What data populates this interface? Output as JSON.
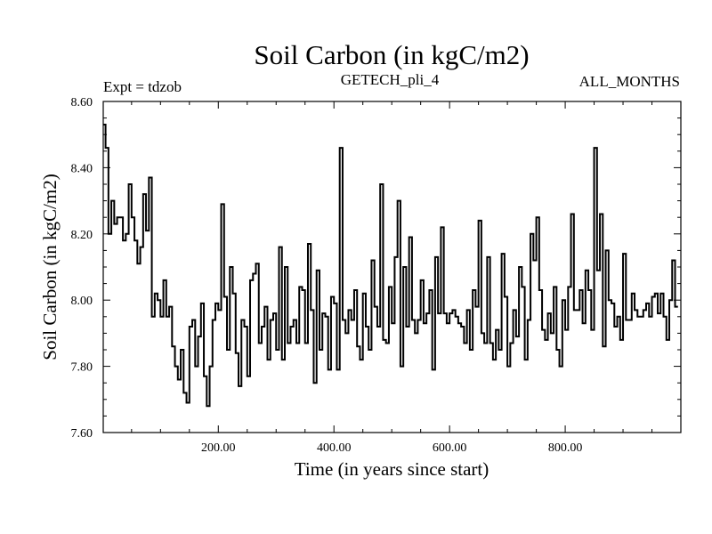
{
  "chart_data": {
    "type": "line",
    "title": "Soil Carbon (in kgC/m2)",
    "subtitle_left": "Expt = tdzob",
    "subtitle_center": "GETECH_pli_4",
    "subtitle_right": "ALL_MONTHS",
    "xlabel": "Time (in years since start)",
    "ylabel": "Soil Carbon (in kgC/m2)",
    "xlim": [
      1,
      1000
    ],
    "ylim": [
      7.6,
      8.6
    ],
    "xticks": [
      200,
      400,
      600,
      800
    ],
    "xtick_labels": [
      "200.00",
      "400.00",
      "600.00",
      "800.00"
    ],
    "yticks": [
      7.6,
      7.8,
      8.0,
      8.2,
      8.4,
      8.6
    ],
    "ytick_labels": [
      "7.60",
      "7.80",
      "8.00",
      "8.20",
      "8.40",
      "8.60"
    ],
    "grid": false,
    "step": 5,
    "series": [
      {
        "name": "Soil Carbon",
        "values": [
          8.53,
          8.46,
          8.2,
          8.3,
          8.23,
          8.25,
          8.25,
          8.18,
          8.2,
          8.35,
          8.25,
          8.18,
          8.11,
          8.16,
          8.32,
          8.21,
          8.37,
          7.95,
          8.02,
          8.0,
          7.95,
          8.06,
          7.95,
          7.98,
          7.86,
          7.8,
          7.76,
          7.85,
          7.72,
          7.69,
          7.92,
          7.94,
          7.8,
          7.89,
          7.99,
          7.77,
          7.68,
          7.8,
          7.94,
          7.99,
          7.97,
          8.29,
          8.01,
          7.85,
          8.1,
          8.02,
          7.84,
          7.74,
          7.94,
          7.92,
          7.77,
          8.06,
          8.08,
          8.11,
          7.87,
          7.92,
          7.98,
          7.82,
          7.94,
          7.96,
          7.85,
          8.16,
          7.82,
          8.1,
          7.87,
          7.92,
          7.94,
          7.87,
          8.04,
          8.03,
          7.87,
          8.17,
          7.97,
          7.75,
          8.09,
          7.85,
          7.96,
          7.95,
          7.79,
          8.01,
          7.99,
          7.79,
          8.46,
          7.94,
          7.9,
          7.97,
          7.94,
          8.03,
          7.86,
          7.82,
          8.02,
          7.92,
          7.85,
          8.12,
          7.98,
          7.92,
          8.35,
          7.88,
          7.87,
          8.04,
          7.93,
          8.13,
          8.3,
          7.8,
          8.1,
          7.92,
          8.19,
          7.94,
          7.9,
          7.94,
          8.06,
          7.93,
          7.96,
          8.03,
          7.79,
          8.13,
          7.96,
          8.22,
          7.96,
          7.93,
          7.96,
          7.97,
          7.95,
          7.93,
          7.92,
          7.87,
          7.97,
          7.85,
          8.03,
          7.98,
          8.24,
          7.9,
          7.87,
          8.13,
          7.87,
          7.82,
          7.91,
          7.85,
          8.14,
          8.01,
          7.8,
          7.87,
          7.97,
          7.89,
          8.1,
          8.04,
          7.82,
          7.94,
          8.2,
          8.12,
          8.25,
          8.03,
          7.91,
          7.88,
          7.96,
          7.9,
          8.04,
          7.85,
          7.8,
          8.0,
          7.91,
          8.04,
          8.26,
          7.97,
          7.97,
          8.03,
          7.93,
          8.09,
          8.03,
          7.91,
          8.46,
          8.09,
          8.26,
          7.86,
          8.15,
          8.0,
          7.99,
          7.92,
          7.95,
          7.88,
          8.14,
          7.94,
          7.94,
          8.02,
          7.97,
          7.95,
          7.95,
          7.97,
          7.99,
          7.95,
          8.01,
          8.02,
          7.96,
          8.02,
          7.95,
          7.88,
          8.0,
          8.12,
          7.98
        ]
      }
    ]
  }
}
